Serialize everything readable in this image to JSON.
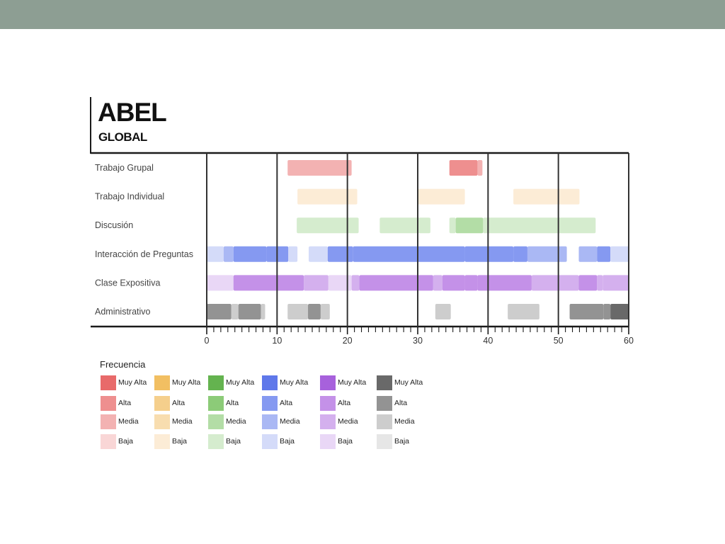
{
  "header": {
    "title": "ABEL",
    "subtitle": "GLOBAL"
  },
  "chart_data": {
    "type": "timeline",
    "title": "ABEL",
    "subtitle": "GLOBAL",
    "xlim": [
      0,
      60
    ],
    "x_tick_labels": [
      0,
      10,
      20,
      30,
      40,
      50,
      60
    ],
    "x_minor_step": 1,
    "categories": [
      "Trabajo Grupal",
      "Trabajo Individual",
      "Discusión",
      "Interacción de Preguntas",
      "Clase Expositiva",
      "Administrativo"
    ],
    "segments": [
      {
        "category": "Trabajo Grupal",
        "start": 11.5,
        "end": 20.6,
        "level": "Media"
      },
      {
        "category": "Trabajo Grupal",
        "start": 34.5,
        "end": 38.5,
        "level": "Alta"
      },
      {
        "category": "Trabajo Grupal",
        "start": 38.5,
        "end": 39.2,
        "level": "Media"
      },
      {
        "category": "Trabajo Individual",
        "start": 12.9,
        "end": 21.4,
        "level": "Baja"
      },
      {
        "category": "Trabajo Individual",
        "start": 30.0,
        "end": 36.7,
        "level": "Baja"
      },
      {
        "category": "Trabajo Individual",
        "start": 43.6,
        "end": 53.0,
        "level": "Baja"
      },
      {
        "category": "Discusión",
        "start": 12.8,
        "end": 21.6,
        "level": "Baja"
      },
      {
        "category": "Discusión",
        "start": 24.6,
        "end": 31.8,
        "level": "Baja"
      },
      {
        "category": "Discusión",
        "start": 34.5,
        "end": 35.4,
        "level": "Baja"
      },
      {
        "category": "Discusión",
        "start": 35.4,
        "end": 39.3,
        "level": "Media"
      },
      {
        "category": "Discusión",
        "start": 39.3,
        "end": 55.3,
        "level": "Baja"
      },
      {
        "category": "Interacción de Preguntas",
        "start": 0.0,
        "end": 2.4,
        "level": "Baja"
      },
      {
        "category": "Interacción de Preguntas",
        "start": 2.4,
        "end": 3.8,
        "level": "Media"
      },
      {
        "category": "Interacción de Preguntas",
        "start": 3.8,
        "end": 8.5,
        "level": "Alta"
      },
      {
        "category": "Interacción de Preguntas",
        "start": 8.5,
        "end": 11.6,
        "level": "Alta"
      },
      {
        "category": "Interacción de Preguntas",
        "start": 11.6,
        "end": 12.9,
        "level": "Baja"
      },
      {
        "category": "Interacción de Preguntas",
        "start": 14.5,
        "end": 17.2,
        "level": "Baja"
      },
      {
        "category": "Interacción de Preguntas",
        "start": 17.2,
        "end": 20.8,
        "level": "Alta"
      },
      {
        "category": "Interacción de Preguntas",
        "start": 20.8,
        "end": 36.7,
        "level": "Alta"
      },
      {
        "category": "Interacción de Preguntas",
        "start": 36.7,
        "end": 43.6,
        "level": "Alta"
      },
      {
        "category": "Interacción de Preguntas",
        "start": 43.6,
        "end": 45.6,
        "level": "Alta"
      },
      {
        "category": "Interacción de Preguntas",
        "start": 45.6,
        "end": 51.2,
        "level": "Media"
      },
      {
        "category": "Interacción de Preguntas",
        "start": 52.9,
        "end": 55.5,
        "level": "Media"
      },
      {
        "category": "Interacción de Preguntas",
        "start": 55.5,
        "end": 57.4,
        "level": "Alta"
      },
      {
        "category": "Interacción de Preguntas",
        "start": 57.4,
        "end": 60.0,
        "level": "Baja"
      },
      {
        "category": "Clase Expositiva",
        "start": 0.0,
        "end": 3.8,
        "level": "Baja"
      },
      {
        "category": "Clase Expositiva",
        "start": 3.8,
        "end": 13.8,
        "level": "Alta"
      },
      {
        "category": "Clase Expositiva",
        "start": 13.8,
        "end": 17.3,
        "level": "Media"
      },
      {
        "category": "Clase Expositiva",
        "start": 17.3,
        "end": 20.6,
        "level": "Baja"
      },
      {
        "category": "Clase Expositiva",
        "start": 20.6,
        "end": 21.7,
        "level": "Media"
      },
      {
        "category": "Clase Expositiva",
        "start": 21.7,
        "end": 32.2,
        "level": "Alta"
      },
      {
        "category": "Clase Expositiva",
        "start": 32.2,
        "end": 33.5,
        "level": "Media"
      },
      {
        "category": "Clase Expositiva",
        "start": 33.5,
        "end": 36.7,
        "level": "Alta"
      },
      {
        "category": "Clase Expositiva",
        "start": 36.7,
        "end": 38.5,
        "level": "Alta"
      },
      {
        "category": "Clase Expositiva",
        "start": 38.5,
        "end": 46.2,
        "level": "Alta"
      },
      {
        "category": "Clase Expositiva",
        "start": 46.2,
        "end": 52.9,
        "level": "Media"
      },
      {
        "category": "Clase Expositiva",
        "start": 52.9,
        "end": 55.5,
        "level": "Alta"
      },
      {
        "category": "Clase Expositiva",
        "start": 55.5,
        "end": 56.3,
        "level": "Media"
      },
      {
        "category": "Clase Expositiva",
        "start": 56.3,
        "end": 60.0,
        "level": "Media"
      },
      {
        "category": "Administrativo",
        "start": 0.0,
        "end": 3.5,
        "level": "Alta"
      },
      {
        "category": "Administrativo",
        "start": 3.5,
        "end": 4.5,
        "level": "Media"
      },
      {
        "category": "Administrativo",
        "start": 4.5,
        "end": 7.7,
        "level": "Alta"
      },
      {
        "category": "Administrativo",
        "start": 7.7,
        "end": 8.3,
        "level": "Media"
      },
      {
        "category": "Administrativo",
        "start": 11.5,
        "end": 14.4,
        "level": "Media"
      },
      {
        "category": "Administrativo",
        "start": 14.4,
        "end": 16.2,
        "level": "Alta"
      },
      {
        "category": "Administrativo",
        "start": 16.2,
        "end": 17.5,
        "level": "Media"
      },
      {
        "category": "Administrativo",
        "start": 32.5,
        "end": 34.7,
        "level": "Media"
      },
      {
        "category": "Administrativo",
        "start": 42.8,
        "end": 47.3,
        "level": "Media"
      },
      {
        "category": "Administrativo",
        "start": 51.6,
        "end": 56.4,
        "level": "Alta"
      },
      {
        "category": "Administrativo",
        "start": 56.4,
        "end": 57.4,
        "level": "Alta"
      },
      {
        "category": "Administrativo",
        "start": 57.4,
        "end": 60.0,
        "level": "Muy Alta"
      }
    ],
    "category_colors": {
      "Trabajo Grupal": {
        "Muy Alta": "#e86a6a",
        "Alta": "#ee8f8f",
        "Media": "#f3b2b2",
        "Baja": "#f9d6d6"
      },
      "Trabajo Individual": {
        "Muy Alta": "#f2bf62",
        "Alta": "#f5cf8c",
        "Media": "#f8ddaf",
        "Baja": "#fcecd6"
      },
      "Discusión": {
        "Muy Alta": "#64b34f",
        "Alta": "#8ccb78",
        "Media": "#b3dda6",
        "Baja": "#d5ecce"
      },
      "Interacción de Preguntas": {
        "Muy Alta": "#5f78ea",
        "Alta": "#8599f1",
        "Media": "#aab8f4",
        "Baja": "#d4dbf9"
      },
      "Clase Expositiva": {
        "Muy Alta": "#a761dc",
        "Alta": "#c491e8",
        "Media": "#d4b0ee",
        "Baja": "#e9d7f6"
      },
      "Administrativo": {
        "Muy Alta": "#696969",
        "Alta": "#939393",
        "Media": "#cdcdcd",
        "Baja": "#e6e6e6"
      }
    },
    "legend": {
      "title": "Frecuencia",
      "levels": [
        "Muy Alta",
        "Alta",
        "Media",
        "Baja"
      ]
    },
    "grid": "vertical-major"
  }
}
